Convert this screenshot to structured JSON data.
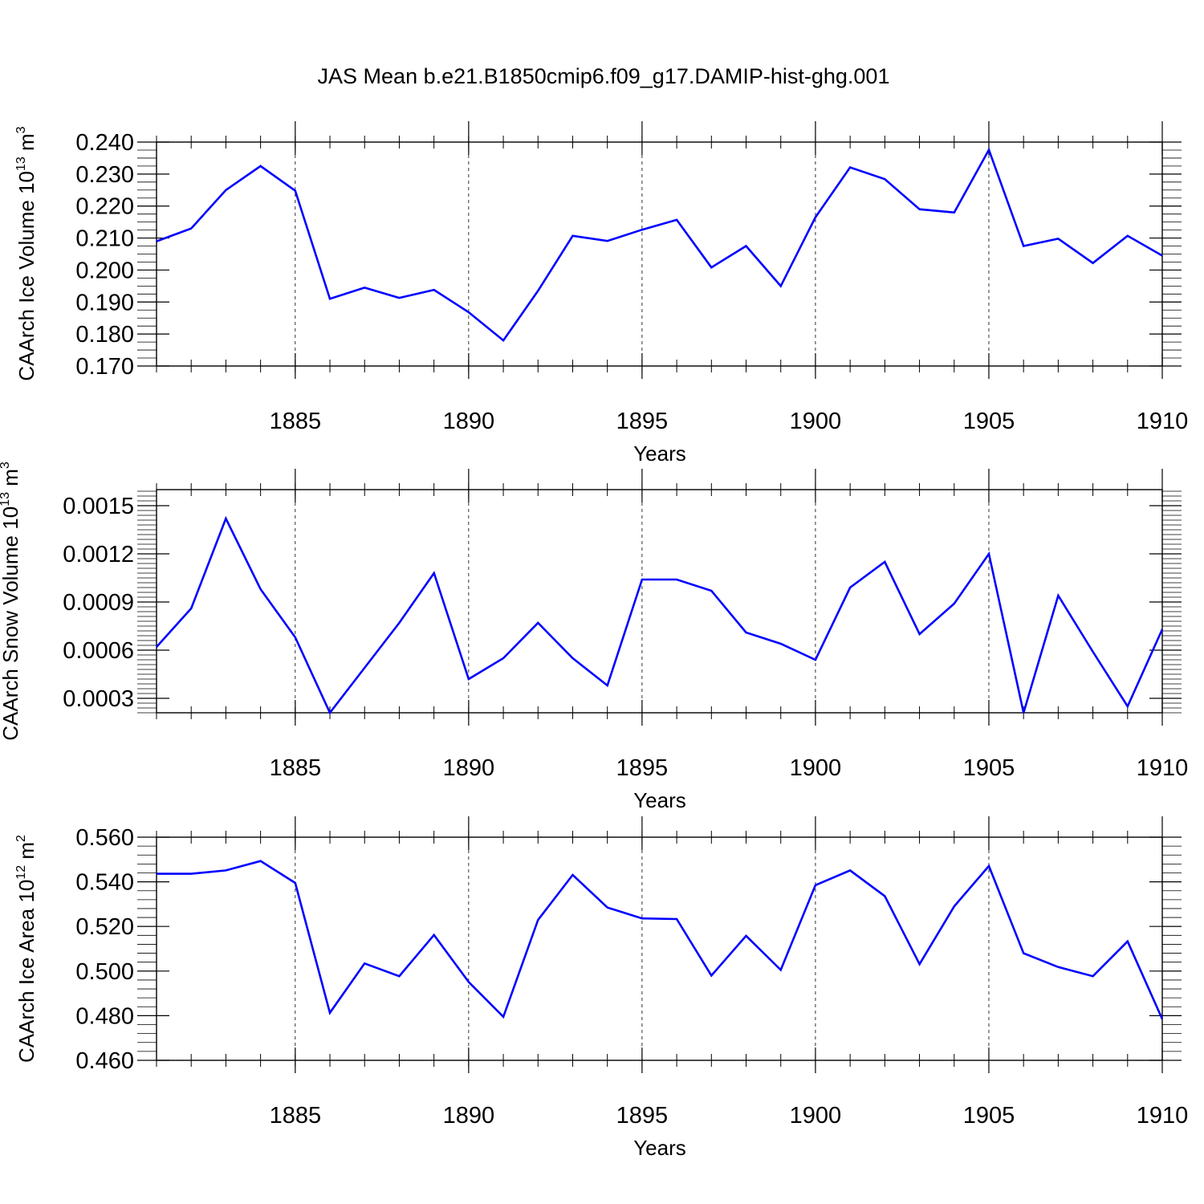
{
  "figure": {
    "title": "JAS Mean b.e21.B1850cmip6.f09_g17.DAMIP-hist-ghg.001"
  },
  "colors": {
    "series": "#0000ff",
    "axis": "#000000",
    "grid": "#000000"
  },
  "chart_data": [
    {
      "type": "line",
      "ylabel": {
        "main": "CAArch Ice Volume 10",
        "sup1": "13",
        "mid": " m",
        "sup2": "3"
      },
      "xlabel": "Years",
      "xlim": [
        1881,
        1910
      ],
      "ylim": [
        0.17,
        0.24
      ],
      "x_ticks": [
        "1885",
        "1890",
        "1895",
        "1900",
        "1905",
        "1910"
      ],
      "y_ticks": [
        "0.170",
        "0.180",
        "0.190",
        "0.200",
        "0.210",
        "0.220",
        "0.230",
        "0.240"
      ],
      "grid": "dashed vertical lines at x major ticks",
      "x": [
        1881,
        1882,
        1883,
        1884,
        1885,
        1886,
        1887,
        1888,
        1889,
        1890,
        1891,
        1892,
        1893,
        1894,
        1895,
        1896,
        1897,
        1898,
        1899,
        1900,
        1901,
        1902,
        1903,
        1904,
        1905,
        1906,
        1907,
        1908,
        1909,
        1910
      ],
      "series": [
        {
          "values": [
            0.209,
            0.213,
            0.225,
            0.2325,
            0.2248,
            0.191,
            0.1945,
            0.1913,
            0.1938,
            0.1868,
            0.178,
            0.1935,
            0.2107,
            0.2091,
            0.2126,
            0.2157,
            0.2008,
            0.2075,
            0.195,
            0.2165,
            0.2321,
            0.2284,
            0.219,
            0.218,
            0.2376,
            0.2075,
            0.2098,
            0.2022,
            0.2107,
            0.2045
          ]
        }
      ]
    },
    {
      "type": "line",
      "ylabel": {
        "main": "CAArch Snow Volume 10",
        "sup1": "13",
        "mid": " m",
        "sup2": "3"
      },
      "xlabel": "Years",
      "xlim": [
        1881,
        1910
      ],
      "ylim": [
        0.00021,
        0.0016
      ],
      "x_ticks": [
        "1885",
        "1890",
        "1895",
        "1900",
        "1905",
        "1910"
      ],
      "y_ticks": [
        "0.0003",
        "0.0006",
        "0.0009",
        "0.0012",
        "0.0015"
      ],
      "grid": "dashed vertical lines at x major ticks",
      "x": [
        1881,
        1882,
        1883,
        1884,
        1885,
        1886,
        1887,
        1888,
        1889,
        1890,
        1891,
        1892,
        1893,
        1894,
        1895,
        1896,
        1897,
        1898,
        1899,
        1900,
        1901,
        1902,
        1903,
        1904,
        1905,
        1906,
        1907,
        1908,
        1909,
        1910
      ],
      "series": [
        {
          "values": [
            0.00062,
            0.00086,
            0.00142,
            0.00098,
            0.00068,
            0.00021,
            0.00049,
            0.00077,
            0.00108,
            0.00042,
            0.00055,
            0.00077,
            0.00055,
            0.00038,
            0.00104,
            0.00104,
            0.00097,
            0.00071,
            0.00064,
            0.00054,
            0.00099,
            0.00115,
            0.0007,
            0.00089,
            0.0012,
            0.00021,
            0.00094,
            0.00059,
            0.00025,
            0.00073
          ]
        }
      ]
    },
    {
      "type": "line",
      "ylabel": {
        "main": "CAArch Ice Area 10",
        "sup1": "12",
        "mid": " m",
        "sup2": "2"
      },
      "xlabel": "Years",
      "xlim": [
        1881,
        1910
      ],
      "ylim": [
        0.46,
        0.56
      ],
      "x_ticks": [
        "1885",
        "1890",
        "1895",
        "1900",
        "1905",
        "1910"
      ],
      "y_ticks": [
        "0.460",
        "0.480",
        "0.500",
        "0.520",
        "0.540",
        "0.560"
      ],
      "grid": "dashed vertical lines at x major ticks",
      "x": [
        1881,
        1882,
        1883,
        1884,
        1885,
        1886,
        1887,
        1888,
        1889,
        1890,
        1891,
        1892,
        1893,
        1894,
        1895,
        1896,
        1897,
        1898,
        1899,
        1900,
        1901,
        1902,
        1903,
        1904,
        1905,
        1906,
        1907,
        1908,
        1909,
        1910
      ],
      "series": [
        {
          "values": [
            0.5436,
            0.5436,
            0.5451,
            0.5493,
            0.5395,
            0.4813,
            0.5034,
            0.4977,
            0.5162,
            0.4951,
            0.4795,
            0.5229,
            0.5431,
            0.5285,
            0.5236,
            0.5233,
            0.498,
            0.5158,
            0.5005,
            0.5385,
            0.5451,
            0.5336,
            0.5031,
            0.529,
            0.5471,
            0.508,
            0.5018,
            0.4977,
            0.5133,
            0.4785
          ]
        }
      ]
    }
  ]
}
